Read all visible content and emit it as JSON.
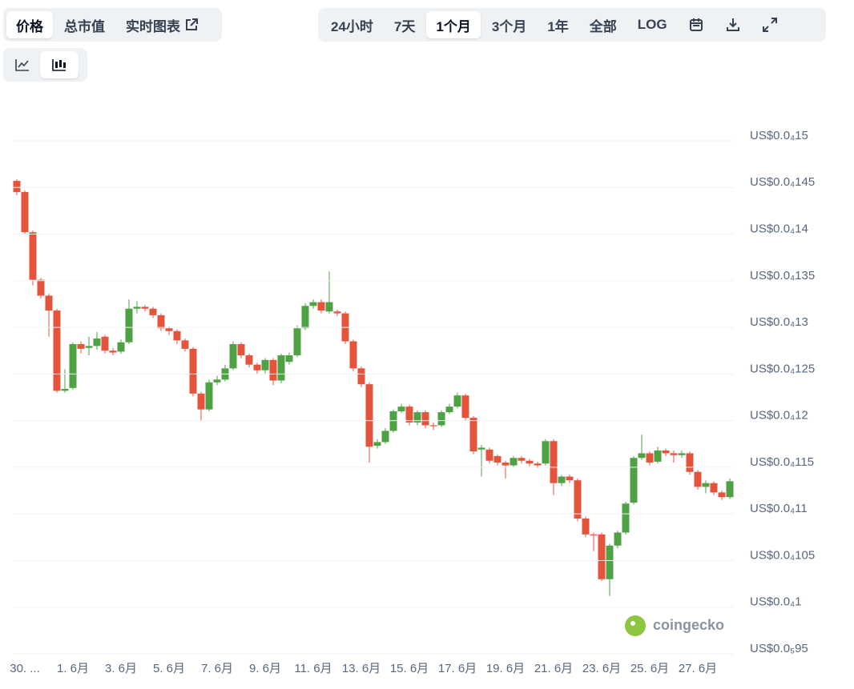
{
  "ui": {
    "tabs": [
      "价格",
      "总市值",
      "实时图表"
    ],
    "ranges": [
      "24小时",
      "7天",
      "1个月",
      "3个月",
      "1年",
      "全部",
      "LOG"
    ],
    "watermark": "coingecko"
  },
  "chart_data": {
    "type": "candlestick",
    "up_color": "#4ea244",
    "down_color": "#e4533c",
    "grid": true,
    "categories": [
      null,
      "30. ...",
      null,
      null,
      null,
      null,
      null,
      "1. 6月",
      null,
      null,
      null,
      null,
      null,
      "3. 6月",
      null,
      null,
      null,
      null,
      null,
      "5. 6月",
      null,
      null,
      null,
      null,
      null,
      "7. 6月",
      null,
      null,
      null,
      null,
      null,
      "9. 6月",
      null,
      null,
      null,
      null,
      null,
      "11. 6月",
      null,
      null,
      null,
      null,
      null,
      "13. 6月",
      null,
      null,
      null,
      null,
      null,
      "15. 6月",
      null,
      null,
      null,
      null,
      null,
      "17. 6月",
      null,
      null,
      null,
      null,
      null,
      "19. 6月",
      null,
      null,
      null,
      null,
      null,
      "21. 6月",
      null,
      null,
      null,
      null,
      null,
      "23. 6月",
      null,
      null,
      null,
      null,
      null,
      "25. 6月",
      null,
      null,
      null,
      null,
      null,
      "27. 6月",
      null,
      null,
      null,
      null
    ],
    "open": [
      1.457e-05,
      1.445e-05,
      1.402e-05,
      1.351e-05,
      1.334e-05,
      1.318e-05,
      1.232e-05,
      1.235e-05,
      1.282e-05,
      1.278e-05,
      1.28e-05,
      1.29e-05,
      1.275e-05,
      1.274e-05,
      1.284e-05,
      1.32e-05,
      1.322e-05,
      1.32e-05,
      1.313e-05,
      1.299e-05,
      1.296e-05,
      1.286e-05,
      1.277e-05,
      1.229e-05,
      1.212e-05,
      1.241e-05,
      1.244e-05,
      1.256e-05,
      1.282e-05,
      1.27e-05,
      1.26e-05,
      1.254e-05,
      1.265e-05,
      1.243e-05,
      1.263e-05,
      1.27e-05,
      1.299e-05,
      1.323e-05,
      1.327e-05,
      1.317e-05,
      1.317e-05,
      1.315e-05,
      1.285e-05,
      1.256e-05,
      1.239e-05,
      1.173e-05,
      1.177e-05,
      1.189e-05,
      1.21e-05,
      1.215e-05,
      1.198e-05,
      1.209e-05,
      1.195e-05,
      1.195e-05,
      1.209e-05,
      1.215e-05,
      1.227e-05,
      1.203e-05,
      1.169e-05,
      1.169e-05,
      1.162e-05,
      1.155e-05,
      1.152e-05,
      1.16e-05,
      1.157e-05,
      1.154e-05,
      1.154e-05,
      1.178e-05,
      1.133e-05,
      1.14e-05,
      1.136e-05,
      1.095e-05,
      1.078e-05,
      1.078e-05,
      1.03e-05,
      1.066e-05,
      1.08e-05,
      1.112e-05,
      1.16e-05,
      1.165e-05,
      1.156e-05,
      1.168e-05,
      1.165e-05,
      1.163e-05,
      1.165e-05,
      1.145e-05,
      1.129e-05,
      1.133e-05,
      1.123e-05,
      1.118e-05
    ],
    "high": [
      1.459e-05,
      1.447e-05,
      1.404e-05,
      1.353e-05,
      1.336e-05,
      1.32e-05,
      1.255e-05,
      1.284e-05,
      1.285e-05,
      1.29e-05,
      1.295e-05,
      1.292e-05,
      1.278e-05,
      1.287e-05,
      1.33e-05,
      1.328e-05,
      1.324e-05,
      1.322e-05,
      1.315e-05,
      1.301e-05,
      1.298e-05,
      1.288e-05,
      1.279e-05,
      1.231e-05,
      1.244e-05,
      1.248e-05,
      1.26e-05,
      1.285e-05,
      1.284e-05,
      1.272e-05,
      1.262e-05,
      1.267e-05,
      1.267e-05,
      1.272e-05,
      1.273e-05,
      1.302e-05,
      1.326e-05,
      1.33e-05,
      1.33e-05,
      1.36e-05,
      1.319e-05,
      1.317e-05,
      1.287e-05,
      1.258e-05,
      1.241e-05,
      1.18e-05,
      1.192e-05,
      1.212e-05,
      1.218e-05,
      1.217e-05,
      1.211e-05,
      1.211e-05,
      1.198e-05,
      1.211e-05,
      1.218e-05,
      1.23e-05,
      1.229e-05,
      1.205e-05,
      1.174e-05,
      1.171e-05,
      1.164e-05,
      1.157e-05,
      1.162e-05,
      1.162e-05,
      1.159e-05,
      1.156e-05,
      1.18e-05,
      1.18e-05,
      1.142e-05,
      1.142e-05,
      1.138e-05,
      1.097e-05,
      1.08e-05,
      1.08e-05,
      1.068e-05,
      1.082e-05,
      1.113e-05,
      1.162e-05,
      1.185e-05,
      1.167e-05,
      1.172e-05,
      1.17e-05,
      1.168e-05,
      1.168e-05,
      1.167e-05,
      1.147e-05,
      1.136e-05,
      1.135e-05,
      1.125e-05,
      1.138e-05
    ],
    "low": [
      1.442e-05,
      1.4e-05,
      1.345e-05,
      1.331e-05,
      1.29e-05,
      1.23e-05,
      1.23e-05,
      1.233e-05,
      1.272e-05,
      1.27e-05,
      1.276e-05,
      1.272e-05,
      1.27e-05,
      1.272e-05,
      1.282e-05,
      1.315e-05,
      1.317e-05,
      1.31e-05,
      1.296e-05,
      1.292e-05,
      1.282e-05,
      1.274e-05,
      1.226e-05,
      1.2e-05,
      1.21e-05,
      1.238e-05,
      1.242e-05,
      1.254e-05,
      1.267e-05,
      1.257e-05,
      1.25e-05,
      1.25e-05,
      1.238e-05,
      1.24e-05,
      1.26e-05,
      1.268e-05,
      1.297e-05,
      1.32e-05,
      1.315e-05,
      1.315e-05,
      1.312e-05,
      1.282e-05,
      1.253e-05,
      1.236e-05,
      1.155e-05,
      1.17e-05,
      1.175e-05,
      1.187e-05,
      1.208e-05,
      1.195e-05,
      1.195e-05,
      1.192e-05,
      1.19e-05,
      1.193e-05,
      1.207e-05,
      1.213e-05,
      1.2e-05,
      1.164e-05,
      1.14e-05,
      1.154e-05,
      1.152e-05,
      1.138e-05,
      1.15e-05,
      1.154e-05,
      1.151e-05,
      1.149e-05,
      1.152e-05,
      1.12e-05,
      1.13e-05,
      1.133e-05,
      1.092e-05,
      1.075e-05,
      1.06e-05,
      1.028e-05,
      1.012e-05,
      1.063e-05,
      1.078e-05,
      1.11e-05,
      1.158e-05,
      1.152e-05,
      1.154e-05,
      1.162e-05,
      1.155e-05,
      1.16e-05,
      1.142e-05,
      1.126e-05,
      1.122e-05,
      1.12e-05,
      1.115e-05,
      1.116e-05
    ],
    "close": [
      1.445e-05,
      1.402e-05,
      1.351e-05,
      1.334e-05,
      1.318e-05,
      1.232e-05,
      1.234e-05,
      1.282e-05,
      1.277e-05,
      1.28e-05,
      1.288e-05,
      1.275e-05,
      1.273e-05,
      1.284e-05,
      1.32e-05,
      1.322e-05,
      1.32e-05,
      1.313e-05,
      1.299e-05,
      1.296e-05,
      1.286e-05,
      1.277e-05,
      1.229e-05,
      1.212e-05,
      1.241e-05,
      1.244e-05,
      1.256e-05,
      1.282e-05,
      1.27e-05,
      1.26e-05,
      1.254e-05,
      1.265e-05,
      1.243e-05,
      1.27e-05,
      1.27e-05,
      1.299e-05,
      1.323e-05,
      1.327e-05,
      1.318e-05,
      1.327e-05,
      1.315e-05,
      1.285e-05,
      1.256e-05,
      1.239e-05,
      1.172e-05,
      1.177e-05,
      1.189e-05,
      1.21e-05,
      1.215e-05,
      1.198e-05,
      1.209e-05,
      1.195e-05,
      1.194e-05,
      1.209e-05,
      1.215e-05,
      1.227e-05,
      1.203e-05,
      1.167e-05,
      1.171e-05,
      1.157e-05,
      1.155e-05,
      1.152e-05,
      1.16e-05,
      1.157e-05,
      1.154e-05,
      1.152e-05,
      1.178e-05,
      1.133e-05,
      1.14e-05,
      1.136e-05,
      1.095e-05,
      1.078e-05,
      1.077e-05,
      1.03e-05,
      1.066e-05,
      1.08e-05,
      1.111e-05,
      1.16e-05,
      1.165e-05,
      1.155e-05,
      1.168e-05,
      1.165e-05,
      1.163e-05,
      1.165e-05,
      1.145e-05,
      1.129e-05,
      1.133e-05,
      1.123e-05,
      1.118e-05,
      1.135e-05
    ],
    "ylim": [
      9.5e-06,
      1.53e-05
    ],
    "yticks": [
      {
        "value": 9.5e-06,
        "label": "US$0.0₅95"
      },
      {
        "value": 1e-05,
        "label": "US$0.0₄1"
      },
      {
        "value": 1.05e-05,
        "label": "US$0.0₄105"
      },
      {
        "value": 1.1e-05,
        "label": "US$0.0₄11"
      },
      {
        "value": 1.15e-05,
        "label": "US$0.0₄115"
      },
      {
        "value": 1.2e-05,
        "label": "US$0.0₄12"
      },
      {
        "value": 1.25e-05,
        "label": "US$0.0₄125"
      },
      {
        "value": 1.3e-05,
        "label": "US$0.0₄13"
      },
      {
        "value": 1.35e-05,
        "label": "US$0.0₄135"
      },
      {
        "value": 1.4e-05,
        "label": "US$0.0₄14"
      },
      {
        "value": 1.45e-05,
        "label": "US$0.0₄145"
      },
      {
        "value": 1.5e-05,
        "label": "US$0.0₄15"
      }
    ]
  }
}
